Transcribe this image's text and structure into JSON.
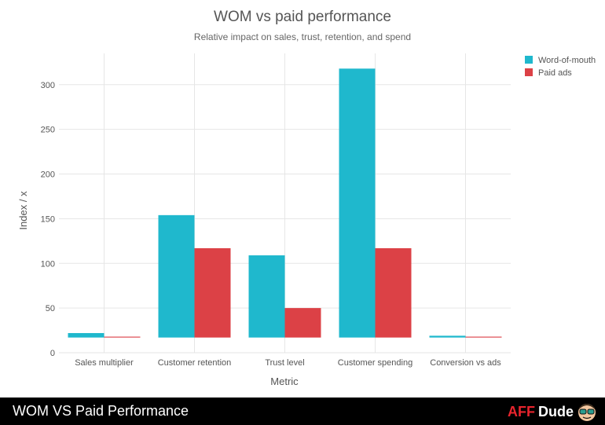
{
  "chart_data": {
    "type": "bar",
    "title": "WOM vs paid performance",
    "subtitle": "Relative impact on sales, trust, retention, and spend",
    "xlabel": "Metric",
    "ylabel": "Index / x",
    "categories": [
      "Sales multiplier",
      "Customer retention",
      "Trust level",
      "Customer spending",
      "Conversion vs ads"
    ],
    "series": [
      {
        "name": "Word-of-mouth",
        "color": "#1fb8cd",
        "values": [
          5,
          137,
          92,
          301,
          2
        ]
      },
      {
        "name": "Paid ads",
        "color": "#dc4146",
        "values": [
          1,
          100,
          33,
          100,
          1
        ]
      }
    ],
    "ylim": [
      0,
      335
    ],
    "yticks": [
      0,
      50,
      100,
      150,
      200,
      250,
      300
    ],
    "baseline": 17,
    "grid": true,
    "legend_position": "top-right"
  },
  "footer": {
    "title": "WOM VS Paid Performance",
    "brand_aff": "AFF",
    "brand_dude": "Dude",
    "brand_icon": "dude-face-icon"
  }
}
